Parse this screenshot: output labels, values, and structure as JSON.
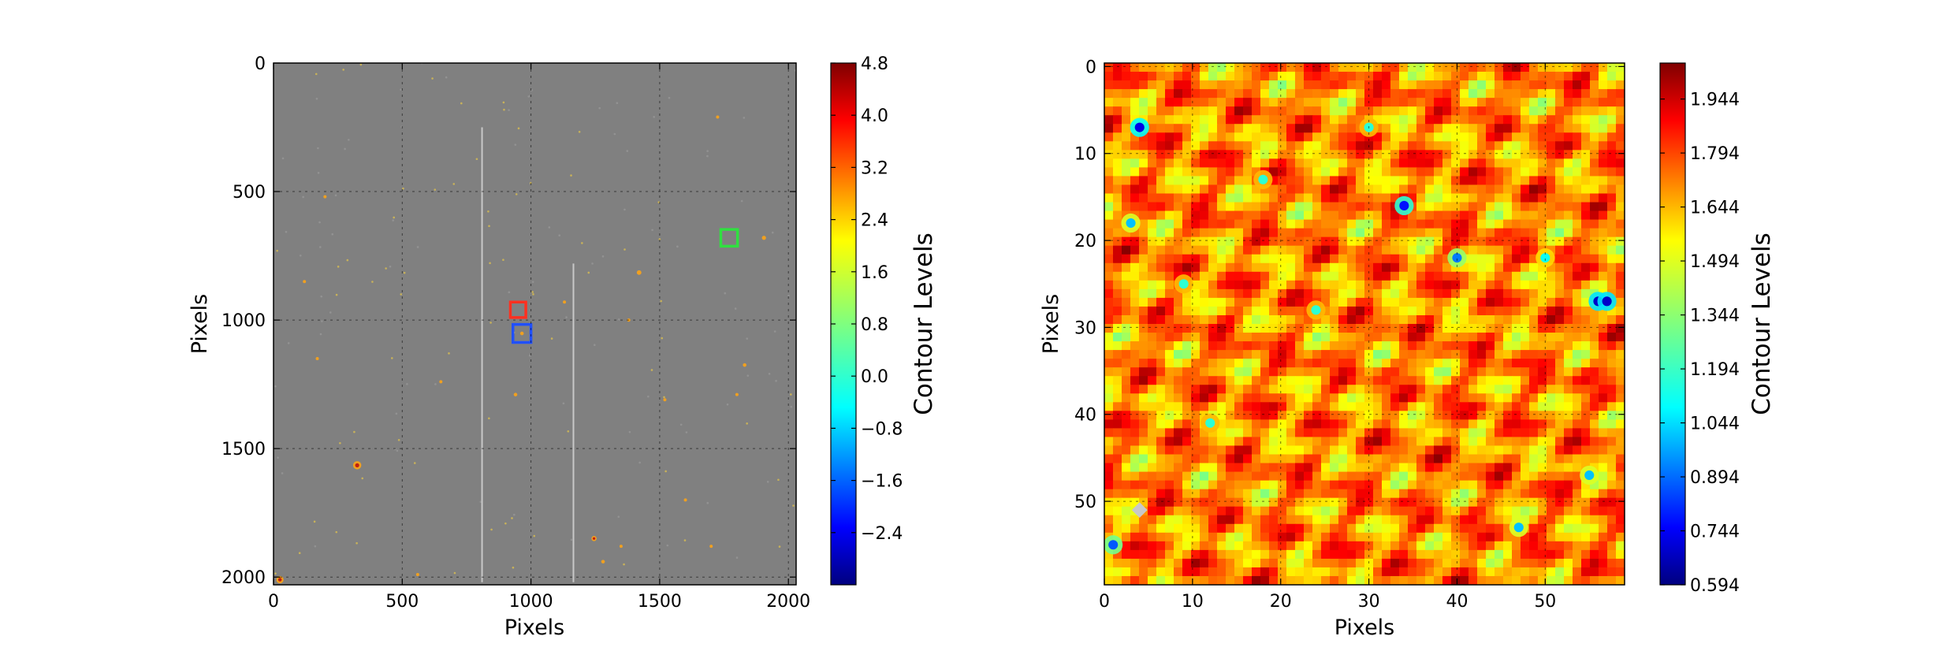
{
  "chart_data": [
    {
      "type": "heatmap",
      "xlabel": "Pixels",
      "ylabel": "Pixels",
      "xlim": [
        0,
        2030
      ],
      "ylim": [
        2030,
        0
      ],
      "xticks": [
        "0",
        "500",
        "1000",
        "1500",
        "2000"
      ],
      "yticks": [
        "0",
        "500",
        "1000",
        "1500",
        "2000"
      ],
      "grid": true,
      "colorbar": {
        "label": "Contour Levels",
        "range": [
          -3.2,
          4.8
        ],
        "ticks": [
          "4.8",
          "4.0",
          "3.2",
          "2.4",
          "1.6",
          "0.8",
          "0.0",
          "−0.8",
          "−1.6",
          "−2.4"
        ]
      },
      "background_color": "#808080",
      "regions": [
        {
          "color": "#ff3020",
          "x": 950,
          "y": 960,
          "size": 60
        },
        {
          "color": "#2050ff",
          "x": 965,
          "y": 1052,
          "size": 70
        },
        {
          "color": "#30e040",
          "x": 1770,
          "y": 680,
          "size": 65
        }
      ],
      "streaks": [
        {
          "x": 810,
          "y0": 250,
          "y1": 2020
        },
        {
          "x": 1165,
          "y0": 780,
          "y1": 2020
        }
      ],
      "sources": [
        {
          "x": 325,
          "y": 1565,
          "r": 16
        },
        {
          "x": 25,
          "y": 2010,
          "r": 14
        },
        {
          "x": 1245,
          "y": 1850,
          "r": 10
        },
        {
          "x": 1420,
          "y": 815,
          "r": 9
        },
        {
          "x": 1905,
          "y": 680,
          "r": 8
        },
        {
          "x": 1280,
          "y": 1940,
          "r": 7
        },
        {
          "x": 940,
          "y": 1290,
          "r": 7
        },
        {
          "x": 965,
          "y": 1052,
          "r": 7
        },
        {
          "x": 1830,
          "y": 1175,
          "r": 7
        },
        {
          "x": 1725,
          "y": 210,
          "r": 6
        },
        {
          "x": 200,
          "y": 520,
          "r": 6
        },
        {
          "x": 170,
          "y": 1150,
          "r": 6
        },
        {
          "x": 1520,
          "y": 1310,
          "r": 6
        },
        {
          "x": 650,
          "y": 1240,
          "r": 6
        },
        {
          "x": 560,
          "y": 1990,
          "r": 6
        },
        {
          "x": 120,
          "y": 850,
          "r": 5
        },
        {
          "x": 1800,
          "y": 1290,
          "r": 5
        },
        {
          "x": 1130,
          "y": 930,
          "r": 5
        },
        {
          "x": 1600,
          "y": 1700,
          "r": 5
        },
        {
          "x": 1380,
          "y": 1000,
          "r": 5
        },
        {
          "x": 1700,
          "y": 1880,
          "r": 5
        },
        {
          "x": 1350,
          "y": 1880,
          "r": 5
        }
      ]
    },
    {
      "type": "heatmap",
      "xlabel": "Pixels",
      "ylabel": "Pixels",
      "xlim": [
        0,
        59
      ],
      "ylim": [
        59.6,
        -0.4
      ],
      "xticks": [
        "0",
        "10",
        "20",
        "30",
        "40",
        "50"
      ],
      "yticks": [
        "0",
        "10",
        "20",
        "30",
        "40",
        "50"
      ],
      "grid": true,
      "colorbar": {
        "label": "Contour Levels",
        "range": [
          0.594,
          2.044
        ],
        "ticks": [
          "1.944",
          "1.794",
          "1.644",
          "1.494",
          "1.344",
          "1.194",
          "1.044",
          "0.894",
          "0.744",
          "0.594"
        ]
      },
      "field_range": [
        1.3,
        2.044
      ],
      "low_spots": [
        {
          "x": 4,
          "y": 7,
          "v": 0.74
        },
        {
          "x": 34,
          "y": 16,
          "v": 0.8
        },
        {
          "x": 56,
          "y": 27,
          "v": 0.7
        },
        {
          "x": 57,
          "y": 27,
          "v": 0.7
        },
        {
          "x": 1,
          "y": 55,
          "v": 0.9
        },
        {
          "x": 40,
          "y": 22,
          "v": 0.95
        },
        {
          "x": 3,
          "y": 18,
          "v": 1.05
        },
        {
          "x": 55,
          "y": 47,
          "v": 1.05
        },
        {
          "x": 47,
          "y": 53,
          "v": 1.05
        },
        {
          "x": 30,
          "y": 7,
          "v": 1.2
        },
        {
          "x": 12,
          "y": 41,
          "v": 1.2
        },
        {
          "x": 24,
          "y": 28,
          "v": 1.2
        },
        {
          "x": 50,
          "y": 22,
          "v": 1.15
        },
        {
          "x": 18,
          "y": 13,
          "v": 1.2
        },
        {
          "x": 9,
          "y": 25,
          "v": 1.2
        }
      ],
      "masked": [
        {
          "x": 4,
          "y": 51
        }
      ]
    }
  ]
}
